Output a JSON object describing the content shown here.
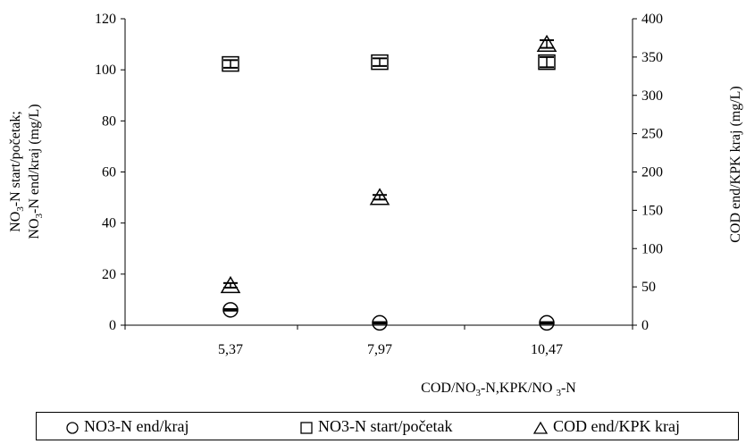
{
  "chart_data": {
    "type": "scatter",
    "title": "",
    "categories": [
      "5,37",
      "7,97",
      "10,47"
    ],
    "xlabel_parts": [
      {
        "t": "COD/NO",
        "s": false
      },
      {
        "t": "3",
        "s": true
      },
      {
        "t": "-N,KPK/NO ",
        "s": false
      },
      {
        "t": "3",
        "s": true
      },
      {
        "t": "-N",
        "s": false
      }
    ],
    "ylabel_left_line1_parts": [
      {
        "t": "NO",
        "s": false
      },
      {
        "t": "3",
        "s": true
      },
      {
        "t": "-N start/početak;",
        "s": false
      }
    ],
    "ylabel_left_line2_parts": [
      {
        "t": "NO",
        "s": false
      },
      {
        "t": "3",
        "s": true
      },
      {
        "t": "-N end/kraj (mg/L)",
        "s": false
      }
    ],
    "ylabel_right": "COD end/KPK kraj (mg/L)",
    "ylim_left": [
      0,
      120
    ],
    "yticks_left": [
      "0",
      "20",
      "40",
      "60",
      "80",
      "100",
      "120"
    ],
    "ylim_right": [
      0,
      400
    ],
    "yticks_right": [
      "0",
      "50",
      "100",
      "150",
      "200",
      "250",
      "300",
      "350",
      "400"
    ],
    "grid": false,
    "legend_position": "bottom",
    "series": [
      {
        "name": "NO3-N end/kraj",
        "marker": "circle",
        "axis": "left",
        "points": [
          {
            "x": "5,37",
            "y": 6,
            "err": 0.3
          },
          {
            "x": "7,97",
            "y": 0.9,
            "err": 0.3
          },
          {
            "x": "10,47",
            "y": 0.9,
            "err": 0.3
          }
        ]
      },
      {
        "name": "NO3-N start/početak",
        "marker": "square",
        "axis": "left",
        "points": [
          {
            "x": "5,37",
            "y": 102.3,
            "err": 1.5
          },
          {
            "x": "7,97",
            "y": 103,
            "err": 1.5
          },
          {
            "x": "10,47",
            "y": 103,
            "err": 2
          }
        ]
      },
      {
        "name": "COD end/KPK kraj",
        "marker": "triangle",
        "axis": "right",
        "points": [
          {
            "x": "5,37",
            "y": 52,
            "err": 3
          },
          {
            "x": "7,97",
            "y": 167,
            "err": 3
          },
          {
            "x": "10,47",
            "y": 367,
            "err": 5
          }
        ]
      }
    ]
  }
}
